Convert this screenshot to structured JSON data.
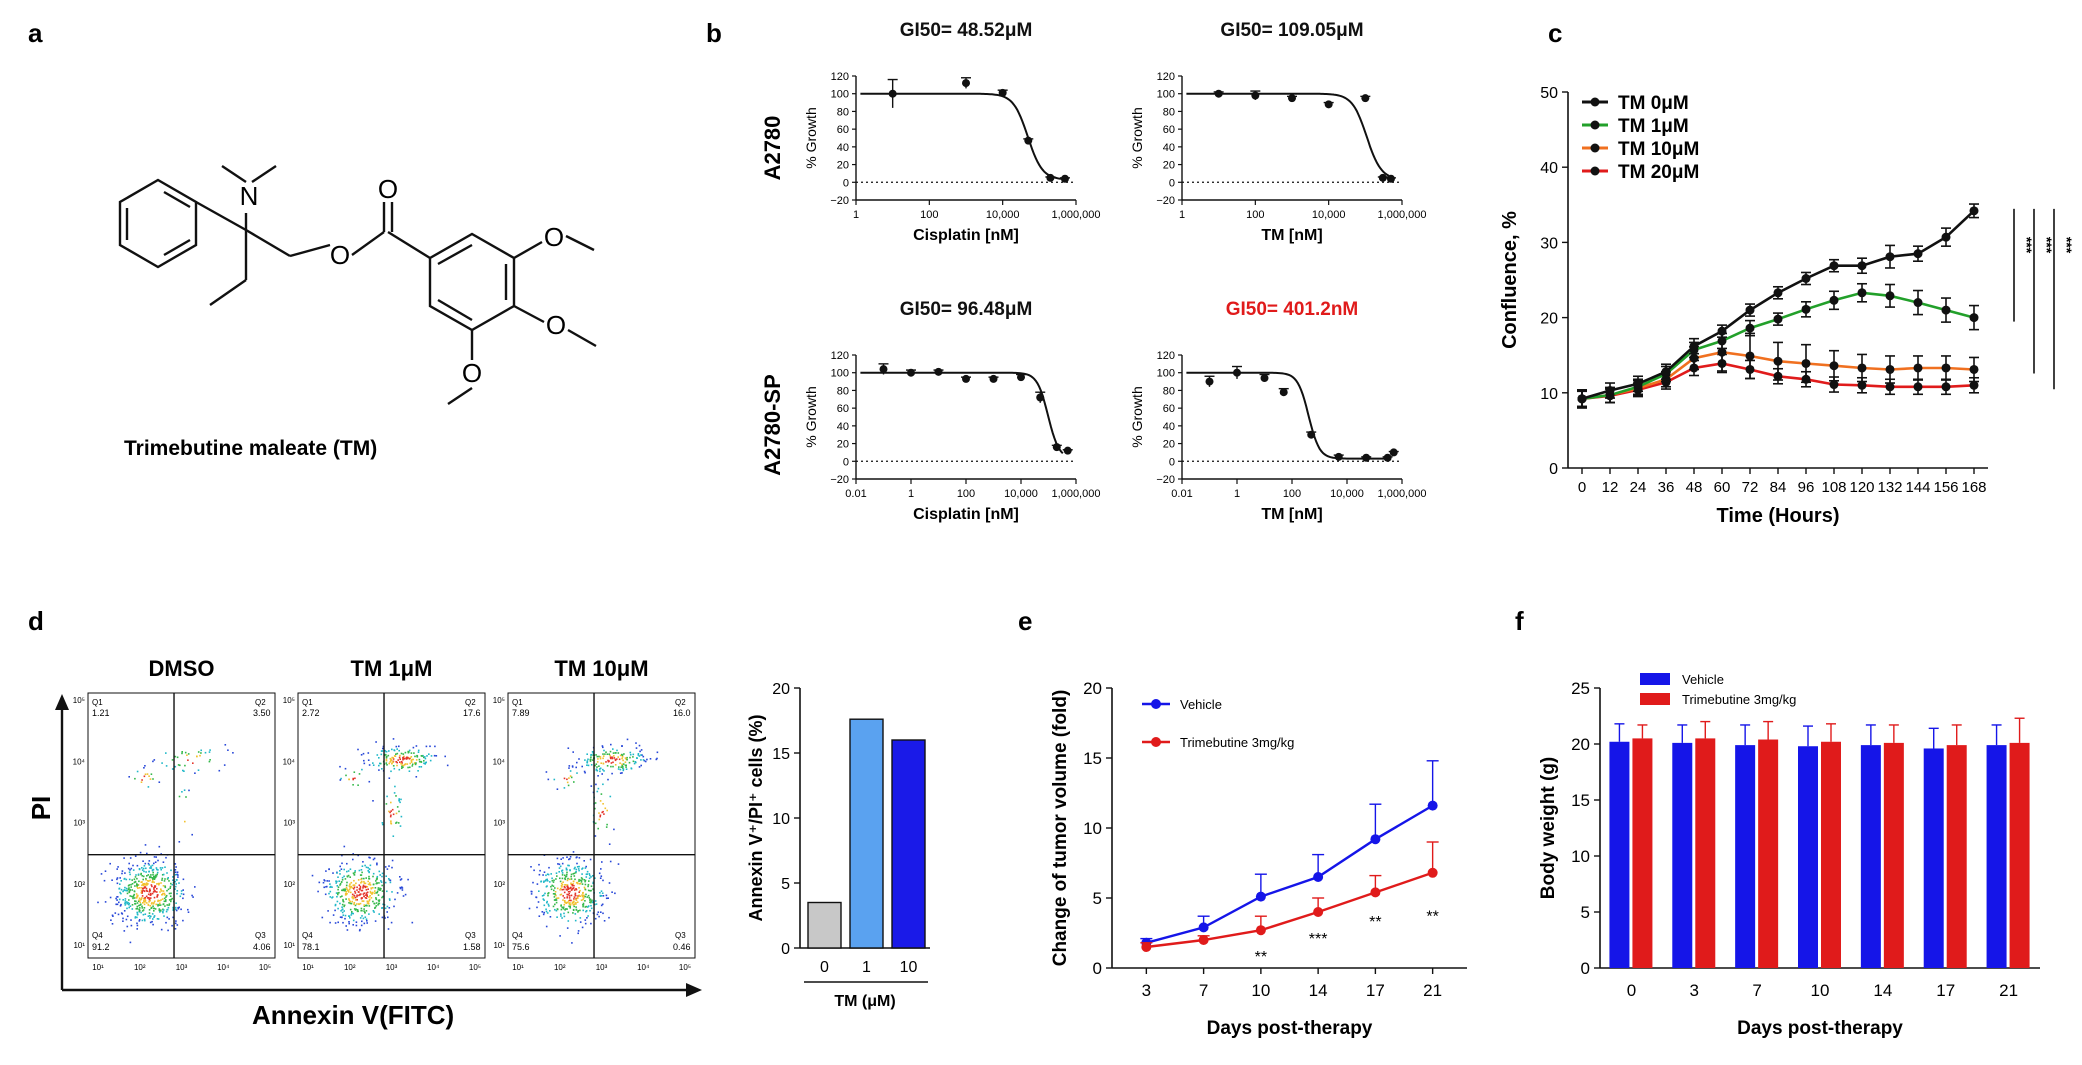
{
  "panel_letters": {
    "a": "a",
    "b": "b",
    "c": "c",
    "d": "d",
    "e": "e",
    "f": "f"
  },
  "colors": {
    "black": "#111111",
    "red": "#e01b1b",
    "green": "#22a02a",
    "orange": "#f07020",
    "blue": "#1515e8",
    "lightblue": "#5aa2f0",
    "gray": "#c8c8c8",
    "darkblue": "#1a1ae8"
  },
  "panel_a": {
    "caption": "Trimebutine maleate (TM)",
    "atom_labels": [
      "N",
      "O",
      "O",
      "O",
      "O",
      "O"
    ]
  },
  "panel_b": {
    "row_labels": [
      "A2780",
      "A2780-SP"
    ],
    "ylabel": "% Growth",
    "yticks": [
      "120",
      "100",
      "80",
      "60",
      "40",
      "20",
      "0",
      "−20"
    ]
  },
  "panel_d": {
    "flow_titles": [
      "DMSO",
      "TM 1μM",
      "TM 10μM"
    ],
    "flow_xlabel": "Annexin V(FITC)",
    "flow_ylabel": "PI",
    "quadrant_labels": [
      "Q1",
      "Q2",
      "Q3",
      "Q4"
    ],
    "quadrants": [
      {
        "q1": "1.21",
        "q2": "3.50",
        "q3": "4.06",
        "q4": "91.2"
      },
      {
        "q1": "2.72",
        "q2": "17.6",
        "q3": "1.58",
        "q4": "78.1"
      },
      {
        "q1": "7.89",
        "q2": "16.0",
        "q3": "0.46",
        "q4": "75.6"
      }
    ],
    "flow_ticks": [
      "10¹",
      "10²",
      "10³",
      "10⁴",
      "10⁵"
    ]
  },
  "chart_data": [
    {
      "id": "b1",
      "type": "scatter",
      "title": "GI50= 48.52μM",
      "title_color": "#111111",
      "xlabel": "Cisplatin [nM]",
      "ylabel": "% Growth",
      "xscale": "log",
      "xlim": [
        1,
        1000000
      ],
      "ylim": [
        -20,
        120
      ],
      "xtick_values": [
        1,
        100,
        10000,
        1000000
      ],
      "xticks": [
        "1",
        "100",
        "10,000",
        "1,000,000"
      ],
      "points": [
        [
          10,
          100
        ],
        [
          1000,
          112
        ],
        [
          10000,
          101
        ],
        [
          50000,
          47
        ],
        [
          200000,
          5
        ],
        [
          500000,
          4
        ]
      ],
      "errors": [
        16,
        6,
        3,
        2,
        1,
        1
      ],
      "gi50": 48520
    },
    {
      "id": "b2",
      "type": "scatter",
      "title": "GI50= 109.05μM",
      "title_color": "#111111",
      "xlabel": "TM [nM]",
      "ylabel": "% Growth",
      "xscale": "log",
      "xlim": [
        1,
        1000000
      ],
      "ylim": [
        -20,
        120
      ],
      "xtick_values": [
        1,
        100,
        10000,
        1000000
      ],
      "xticks": [
        "1",
        "100",
        "10,000",
        "1,000,000"
      ],
      "points": [
        [
          10,
          100
        ],
        [
          100,
          98
        ],
        [
          1000,
          95
        ],
        [
          10000,
          88
        ],
        [
          100000,
          95
        ],
        [
          300000,
          5
        ],
        [
          500000,
          4
        ]
      ],
      "errors": [
        2,
        5,
        2,
        2,
        2,
        1,
        1
      ],
      "gi50": 109050
    },
    {
      "id": "b3",
      "type": "scatter",
      "title": "GI50= 96.48μM",
      "title_color": "#111111",
      "xlabel": "Cisplatin [nM]",
      "ylabel": "% Growth",
      "xscale": "log",
      "xlim": [
        0.01,
        1000000
      ],
      "ylim": [
        -20,
        120
      ],
      "xtick_values": [
        0.01,
        1,
        100,
        10000,
        1000000
      ],
      "xticks": [
        "0.01",
        "1",
        "100",
        "10,000",
        "1,000,000"
      ],
      "points": [
        [
          0.1,
          104
        ],
        [
          1,
          100
        ],
        [
          10,
          101
        ],
        [
          100,
          93
        ],
        [
          1000,
          93
        ],
        [
          10000,
          95
        ],
        [
          50000,
          72
        ],
        [
          200000,
          16
        ],
        [
          500000,
          12
        ]
      ],
      "errors": [
        6,
        3,
        2,
        2,
        2,
        3,
        6,
        2,
        1
      ],
      "gi50": 96480
    },
    {
      "id": "b4",
      "type": "scatter",
      "title": "GI50= 401.2nM",
      "title_color": "#e01b1b",
      "xlabel": "TM [nM]",
      "ylabel": "% Growth",
      "xscale": "log",
      "xlim": [
        0.01,
        1000000
      ],
      "ylim": [
        -20,
        120
      ],
      "xtick_values": [
        0.01,
        1,
        100,
        10000,
        1000000
      ],
      "xticks": [
        "0.01",
        "1",
        "100",
        "10,000",
        "1,000,000"
      ],
      "points": [
        [
          0.1,
          90
        ],
        [
          1,
          100
        ],
        [
          10,
          94
        ],
        [
          50,
          78
        ],
        [
          500,
          30
        ],
        [
          5000,
          5
        ],
        [
          50000,
          4
        ],
        [
          300000,
          4
        ],
        [
          500000,
          10
        ]
      ],
      "errors": [
        6,
        7,
        4,
        4,
        3,
        2,
        1,
        1,
        1
      ],
      "gi50": 401.2
    },
    {
      "id": "c",
      "type": "line",
      "title": "",
      "xlabel": "Time (Hours)",
      "ylabel": "Confluence, %",
      "xlim": [
        -6,
        174
      ],
      "ylim": [
        0,
        50
      ],
      "x": [
        0,
        12,
        24,
        36,
        48,
        60,
        72,
        84,
        96,
        108,
        120,
        132,
        144,
        156,
        168
      ],
      "xticks": [
        "0",
        "12",
        "24",
        "36",
        "48",
        "60",
        "72",
        "84",
        "96",
        "108",
        "120",
        "132",
        "144",
        "156",
        "168"
      ],
      "yticks": [
        "0",
        "10",
        "20",
        "30",
        "40",
        "50"
      ],
      "significance": [
        "***",
        "***",
        "***"
      ],
      "series": [
        {
          "name": "TM 0μM",
          "color": "#111111",
          "values": [
            9.2,
            10.3,
            11.2,
            12.8,
            16.2,
            18.2,
            21.0,
            23.3,
            25.2,
            26.9,
            26.9,
            28.1,
            28.5,
            30.7,
            34.2
          ],
          "errors": [
            1.2,
            1.0,
            1.0,
            1.0,
            1.0,
            0.8,
            0.8,
            0.8,
            0.8,
            0.8,
            1.0,
            1.5,
            1.0,
            1.2,
            0.9
          ]
        },
        {
          "name": "TM 1μM",
          "color": "#22a02a",
          "values": [
            9.2,
            9.7,
            10.8,
            12.5,
            15.7,
            16.9,
            18.6,
            19.8,
            21.1,
            22.3,
            23.3,
            22.9,
            22.0,
            21.0,
            20.0
          ],
          "errors": [
            1.2,
            1.0,
            1.0,
            1.0,
            1.0,
            1.0,
            1.0,
            0.8,
            1.0,
            1.2,
            1.2,
            1.5,
            1.6,
            1.6,
            1.6
          ]
        },
        {
          "name": "TM 10μM",
          "color": "#f07020",
          "values": [
            9.2,
            9.7,
            10.6,
            11.8,
            14.6,
            15.4,
            14.9,
            14.2,
            13.9,
            13.6,
            13.3,
            13.1,
            13.3,
            13.3,
            13.1
          ],
          "errors": [
            1.2,
            1.0,
            1.0,
            1.0,
            1.5,
            2.5,
            3.0,
            2.5,
            2.5,
            2.0,
            1.8,
            1.8,
            1.6,
            1.6,
            1.6
          ]
        },
        {
          "name": "TM 20μM",
          "color": "#e01b1b",
          "values": [
            9.2,
            9.6,
            10.4,
            11.4,
            13.3,
            13.9,
            13.1,
            12.2,
            11.8,
            11.1,
            11.0,
            10.8,
            10.8,
            10.8,
            11.0
          ],
          "errors": [
            1.0,
            0.9,
            0.9,
            0.9,
            1.0,
            1.2,
            1.2,
            1.0,
            1.0,
            1.0,
            1.0,
            1.0,
            1.0,
            1.0,
            1.0
          ]
        }
      ]
    },
    {
      "id": "d_bar",
      "type": "bar",
      "title": "",
      "xlabel": "TM (μM)",
      "ylabel": "Annexin V⁺/PI⁺ cells (%)",
      "categories": [
        "0",
        "1",
        "10"
      ],
      "values": [
        3.5,
        17.6,
        16.0
      ],
      "colors": [
        "#c8c8c8",
        "#5aa2f0",
        "#1a1ae8"
      ],
      "ylim": [
        0,
        20
      ],
      "yticks": [
        "0",
        "5",
        "10",
        "15",
        "20"
      ]
    },
    {
      "id": "e",
      "type": "line",
      "title": "",
      "xlabel": "Days post-therapy",
      "ylabel": "Change of tumor volume (fold)",
      "categories": [
        "3",
        "7",
        "10",
        "14",
        "17",
        "21"
      ],
      "ylim": [
        0,
        20
      ],
      "yticks": [
        "0",
        "5",
        "10",
        "15",
        "20"
      ],
      "series": [
        {
          "name": "Vehicle",
          "color": "#1515e8",
          "values": [
            1.8,
            2.9,
            5.1,
            6.5,
            9.2,
            11.6
          ],
          "errors": [
            0.3,
            0.8,
            1.6,
            1.6,
            2.5,
            3.2
          ]
        },
        {
          "name": "Trimebutine 3mg/kg",
          "color": "#e01b1b",
          "values": [
            1.5,
            2.0,
            2.7,
            4.0,
            5.4,
            6.8
          ],
          "errors": [
            0.3,
            0.3,
            1.0,
            1.0,
            1.2,
            2.2
          ]
        }
      ],
      "significance": [
        "",
        "",
        "**",
        "***",
        "**",
        "**"
      ]
    },
    {
      "id": "f",
      "type": "bar",
      "title": "",
      "xlabel": "Days post-therapy",
      "ylabel": "Body weight (g)",
      "categories": [
        "0",
        "3",
        "7",
        "10",
        "14",
        "17",
        "21"
      ],
      "ylim": [
        0,
        25
      ],
      "yticks": [
        "0",
        "5",
        "10",
        "15",
        "20",
        "25"
      ],
      "series": [
        {
          "name": "Vehicle",
          "color": "#1515e8",
          "values": [
            20.2,
            20.1,
            19.9,
            19.8,
            19.9,
            19.6,
            19.9
          ],
          "errors": [
            1.6,
            1.6,
            1.8,
            1.8,
            1.8,
            1.8,
            1.8
          ]
        },
        {
          "name": "Trimebutine 3mg/kg",
          "color": "#e01b1b",
          "values": [
            20.5,
            20.5,
            20.4,
            20.2,
            20.1,
            19.9,
            20.1
          ],
          "errors": [
            1.2,
            1.5,
            1.6,
            1.6,
            1.6,
            1.8,
            2.2
          ]
        }
      ]
    }
  ]
}
